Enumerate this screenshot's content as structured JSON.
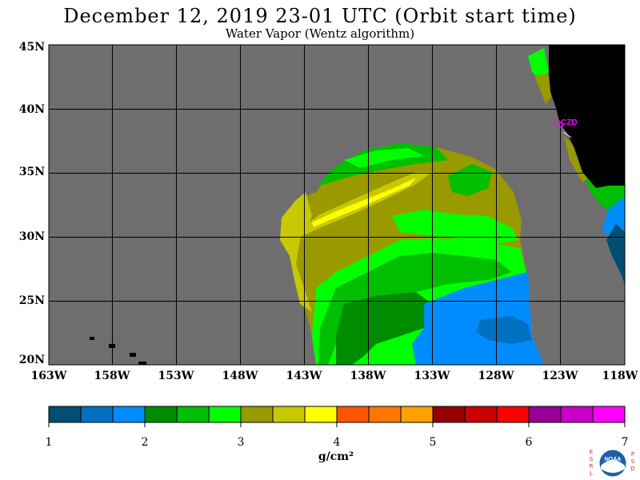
{
  "header": {
    "title": "December 12, 2019  23-01 UTC  (Orbit start time)",
    "subtitle": "Water Vapor (Wentz algorithm)"
  },
  "map": {
    "lat_labels": [
      "45N",
      "40N",
      "35N",
      "30N",
      "25N",
      "20N"
    ],
    "lon_labels": [
      "163W",
      "158W",
      "153W",
      "148W",
      "143W",
      "138W",
      "133W",
      "128W",
      "123W",
      "118W"
    ],
    "station_label": "CZD",
    "colors": {
      "background": "#6e6e6e",
      "land": "#000000",
      "grid": "#000000",
      "station": "#ff00ff"
    }
  },
  "colorbar": {
    "tick_labels": [
      "1",
      "2",
      "3",
      "4",
      "5",
      "6",
      "7"
    ],
    "units": "g/cm²",
    "colors": [
      "#004e72",
      "#0070c0",
      "#008cff",
      "#008c00",
      "#00be00",
      "#00ff00",
      "#999900",
      "#c8c800",
      "#ffff00",
      "#ff5500",
      "#ff7700",
      "#ffa000",
      "#960000",
      "#c80000",
      "#ff0000",
      "#960096",
      "#c800c8",
      "#ff00ff"
    ]
  },
  "logo": {
    "left_letters": "ESRL",
    "right_letters": "PSD",
    "name": "NOAA"
  }
}
